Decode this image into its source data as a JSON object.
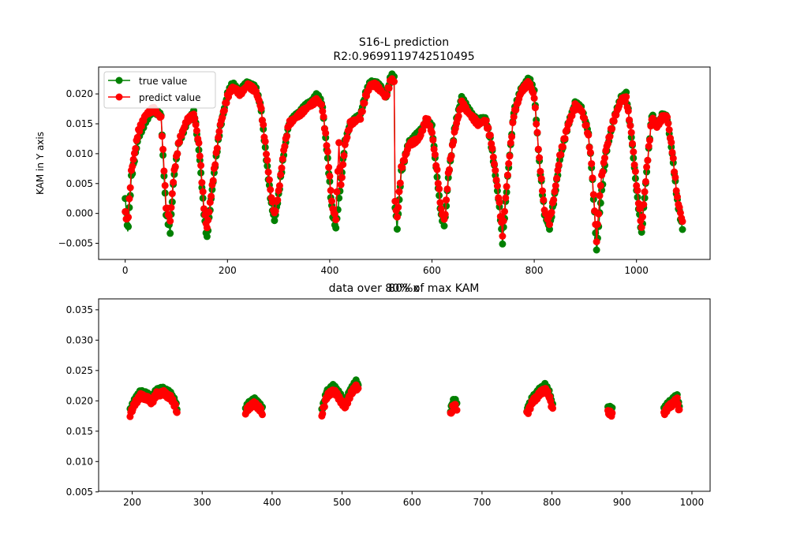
{
  "colors": {
    "true_series": "#008000",
    "predict_series": "#ff0000",
    "axes": "#000000",
    "background": "#ffffff"
  },
  "chart_data": [
    {
      "type": "line",
      "title": "S16-L prediction",
      "subtitle": "R2:0.9699119742510495",
      "xlabel": "",
      "ylabel": "KAM in Y axis",
      "xlim": [
        -52,
        1144
      ],
      "ylim": [
        -0.0077,
        0.0245
      ],
      "xticks": [
        0,
        200,
        400,
        600,
        800,
        1000
      ],
      "yticks": [
        -0.005,
        0.0,
        0.005,
        0.01,
        0.015,
        0.02
      ],
      "ytick_labels": [
        "−0.005",
        "0.000",
        "0.005",
        "0.010",
        "0.015",
        "0.020"
      ],
      "legend": {
        "position": "top-left",
        "entries": [
          "true value",
          "predict value"
        ]
      },
      "series": [
        {
          "name": "true value",
          "marker": "circle",
          "color": "#008000",
          "keypoints": [
            [
              0,
              0.0025
            ],
            [
              5,
              -0.0033
            ],
            [
              12,
              0.006
            ],
            [
              25,
              0.0125
            ],
            [
              40,
              0.0155
            ],
            [
              55,
              0.0172
            ],
            [
              70,
              0.0165
            ],
            [
              75,
              0.008
            ],
            [
              80,
              0.0
            ],
            [
              88,
              -0.003
            ],
            [
              95,
              0.006
            ],
            [
              105,
              0.012
            ],
            [
              120,
              0.015
            ],
            [
              135,
              0.017
            ],
            [
              145,
              0.01
            ],
            [
              155,
              -0.001
            ],
            [
              160,
              -0.0042
            ],
            [
              170,
              0.004
            ],
            [
              185,
              0.014
            ],
            [
              200,
              0.02
            ],
            [
              210,
              0.0217
            ],
            [
              225,
              0.0205
            ],
            [
              240,
              0.022
            ],
            [
              255,
              0.021
            ],
            [
              265,
              0.018
            ],
            [
              275,
              0.01
            ],
            [
              285,
              0.002
            ],
            [
              292,
              -0.0012
            ],
            [
              300,
              0.003
            ],
            [
              310,
              0.01
            ],
            [
              320,
              0.015
            ],
            [
              340,
              0.017
            ],
            [
              360,
              0.0185
            ],
            [
              375,
              0.0198
            ],
            [
              385,
              0.0185
            ],
            [
              395,
              0.01
            ],
            [
              405,
              0.0
            ],
            [
              412,
              -0.0025
            ],
            [
              420,
              0.004
            ],
            [
              430,
              0.012
            ],
            [
              440,
              0.015
            ],
            [
              460,
              0.0165
            ],
            [
              470,
              0.02
            ],
            [
              480,
              0.022
            ],
            [
              490,
              0.022
            ],
            [
              500,
              0.021
            ],
            [
              510,
              0.0195
            ],
            [
              520,
              0.0232
            ],
            [
              526,
              0.0226
            ],
            [
              528,
              0.0012
            ],
            [
              532,
              -0.0025
            ],
            [
              540,
              0.007
            ],
            [
              555,
              0.012
            ],
            [
              575,
              0.0135
            ],
            [
              590,
              0.0155
            ],
            [
              600,
              0.0145
            ],
            [
              610,
              0.006
            ],
            [
              618,
              -0.0005
            ],
            [
              625,
              -0.002
            ],
            [
              632,
              0.006
            ],
            [
              645,
              0.0145
            ],
            [
              658,
              0.0195
            ],
            [
              670,
              0.0175
            ],
            [
              690,
              0.0155
            ],
            [
              705,
              0.016
            ],
            [
              715,
              0.012
            ],
            [
              725,
              0.006
            ],
            [
              732,
              0.001
            ],
            [
              738,
              -0.0048
            ],
            [
              748,
              0.006
            ],
            [
              760,
              0.017
            ],
            [
              775,
              0.021
            ],
            [
              790,
              0.0225
            ],
            [
              800,
              0.0205
            ],
            [
              810,
              0.0085
            ],
            [
              820,
              0.0
            ],
            [
              830,
              -0.0025
            ],
            [
              840,
              0.003
            ],
            [
              850,
              0.009
            ],
            [
              865,
              0.0145
            ],
            [
              880,
              0.0185
            ],
            [
              893,
              0.0175
            ],
            [
              905,
              0.014
            ],
            [
              912,
              0.008
            ],
            [
              918,
              0.0
            ],
            [
              922,
              -0.0062
            ],
            [
              930,
              0.002
            ],
            [
              940,
              0.01
            ],
            [
              955,
              0.0155
            ],
            [
              970,
              0.0195
            ],
            [
              980,
              0.02
            ],
            [
              990,
              0.013
            ],
            [
              1000,
              0.004
            ],
            [
              1010,
              -0.0035
            ],
            [
              1020,
              0.007
            ],
            [
              1030,
              0.0165
            ],
            [
              1040,
              0.0145
            ],
            [
              1050,
              0.0165
            ],
            [
              1060,
              0.016
            ],
            [
              1070,
              0.01
            ],
            [
              1080,
              0.002
            ],
            [
              1090,
              -0.0025
            ]
          ]
        },
        {
          "name": "predict value",
          "marker": "circle",
          "color": "#ff0000",
          "keypoints": [
            [
              0,
              0.0
            ],
            [
              5,
              -0.0015
            ],
            [
              12,
              0.007
            ],
            [
              25,
              0.0135
            ],
            [
              40,
              0.0165
            ],
            [
              55,
              0.0175
            ],
            [
              70,
              0.016
            ],
            [
              75,
              0.009
            ],
            [
              80,
              0.0012
            ],
            [
              88,
              -0.0012
            ],
            [
              95,
              0.0065
            ],
            [
              105,
              0.012
            ],
            [
              120,
              0.0155
            ],
            [
              135,
              0.0165
            ],
            [
              145,
              0.011
            ],
            [
              155,
              0.0
            ],
            [
              160,
              -0.0025
            ],
            [
              170,
              0.0045
            ],
            [
              185,
              0.0145
            ],
            [
              200,
              0.0195
            ],
            [
              210,
              0.0212
            ],
            [
              225,
              0.02
            ],
            [
              240,
              0.0215
            ],
            [
              255,
              0.0205
            ],
            [
              265,
              0.018
            ],
            [
              275,
              0.011
            ],
            [
              285,
              0.0032
            ],
            [
              292,
              -0.0002
            ],
            [
              300,
              0.0035
            ],
            [
              310,
              0.0105
            ],
            [
              320,
              0.015
            ],
            [
              340,
              0.0165
            ],
            [
              360,
              0.018
            ],
            [
              375,
              0.019
            ],
            [
              385,
              0.018
            ],
            [
              395,
              0.011
            ],
            [
              405,
              0.001
            ],
            [
              412,
              -0.0008
            ],
            [
              418,
              0.0115
            ],
            [
              422,
              0.0045
            ],
            [
              430,
              0.0115
            ],
            [
              440,
              0.015
            ],
            [
              460,
              0.016
            ],
            [
              470,
              0.0195
            ],
            [
              480,
              0.0215
            ],
            [
              490,
              0.0215
            ],
            [
              500,
              0.0205
            ],
            [
              510,
              0.0195
            ],
            [
              520,
              0.0225
            ],
            [
              526,
              0.022
            ],
            [
              528,
              0.002
            ],
            [
              532,
              -0.0008
            ],
            [
              540,
              0.0075
            ],
            [
              555,
              0.0115
            ],
            [
              575,
              0.0125
            ],
            [
              590,
              0.016
            ],
            [
              600,
              0.0135
            ],
            [
              610,
              0.007
            ],
            [
              618,
              0.0005
            ],
            [
              625,
              -0.0012
            ],
            [
              632,
              0.0065
            ],
            [
              645,
              0.014
            ],
            [
              658,
              0.0185
            ],
            [
              670,
              0.017
            ],
            [
              690,
              0.015
            ],
            [
              705,
              0.0155
            ],
            [
              715,
              0.0125
            ],
            [
              725,
              0.0065
            ],
            [
              732,
              0.0015
            ],
            [
              738,
              -0.0035
            ],
            [
              748,
              0.0065
            ],
            [
              760,
              0.0165
            ],
            [
              775,
              0.0205
            ],
            [
              790,
              0.022
            ],
            [
              800,
              0.0195
            ],
            [
              810,
              0.009
            ],
            [
              820,
              0.0005
            ],
            [
              830,
              -0.0015
            ],
            [
              840,
              0.0035
            ],
            [
              850,
              0.0095
            ],
            [
              865,
              0.0145
            ],
            [
              880,
              0.018
            ],
            [
              893,
              0.0172
            ],
            [
              905,
              0.0135
            ],
            [
              912,
              0.0085
            ],
            [
              918,
              0.0005
            ],
            [
              922,
              -0.0045
            ],
            [
              930,
              0.005
            ],
            [
              940,
              0.0105
            ],
            [
              955,
              0.0155
            ],
            [
              970,
              0.019
            ],
            [
              980,
              0.0192
            ],
            [
              990,
              0.0135
            ],
            [
              1000,
              0.005
            ],
            [
              1010,
              -0.0025
            ],
            [
              1020,
              0.0075
            ],
            [
              1030,
              0.016
            ],
            [
              1040,
              0.0145
            ],
            [
              1050,
              0.016
            ],
            [
              1060,
              0.0162
            ],
            [
              1070,
              0.0105
            ],
            [
              1080,
              0.0025
            ],
            [
              1090,
              -0.0015
            ]
          ]
        }
      ]
    },
    {
      "type": "scatter",
      "title": "data over 80% of max KAM",
      "xlabel": "",
      "ylabel": "",
      "xlim": [
        152,
        1026
      ],
      "ylim": [
        0.0051,
        0.0368
      ],
      "xticks": [
        200,
        300,
        400,
        500,
        600,
        700,
        800,
        900,
        1000
      ],
      "yticks": [
        0.005,
        0.01,
        0.015,
        0.02,
        0.025,
        0.03,
        0.035
      ],
      "ytick_labels": [
        "0.005",
        "0.010",
        "0.015",
        "0.020",
        "0.025",
        "0.030",
        "0.035"
      ],
      "segments": [
        {
          "x_range": [
            197,
            264
          ],
          "true_shape": [
            [
              197,
              0.0185
            ],
            [
              205,
              0.0205
            ],
            [
              212,
              0.0215
            ],
            [
              220,
              0.0212
            ],
            [
              228,
              0.0205
            ],
            [
              235,
              0.0218
            ],
            [
              245,
              0.022
            ],
            [
              255,
              0.0212
            ],
            [
              262,
              0.0198
            ],
            [
              264,
              0.0188
            ]
          ],
          "predict_offset": -0.0007
        },
        {
          "x_range": [
            362,
            386
          ],
          "true_shape": [
            [
              362,
              0.0188
            ],
            [
              368,
              0.0198
            ],
            [
              375,
              0.0202
            ],
            [
              381,
              0.0196
            ],
            [
              386,
              0.0187
            ]
          ],
          "predict_offset": -0.0007
        },
        {
          "x_range": [
            471,
            523
          ],
          "true_shape": [
            [
              471,
              0.0185
            ],
            [
              478,
              0.0215
            ],
            [
              488,
              0.0225
            ],
            [
              496,
              0.0212
            ],
            [
              504,
              0.0198
            ],
            [
              512,
              0.0218
            ],
            [
              520,
              0.0232
            ],
            [
              523,
              0.0225
            ]
          ],
          "predict_offset": -0.0008
        },
        {
          "x_range": [
            655,
            664
          ],
          "true_shape": [
            [
              655,
              0.0185
            ],
            [
              658,
              0.0198
            ],
            [
              661,
              0.0202
            ],
            [
              664,
              0.0195
            ]
          ],
          "predict_offset": -0.0009
        },
        {
          "x_range": [
            764,
            801
          ],
          "true_shape": [
            [
              764,
              0.0185
            ],
            [
              772,
              0.0205
            ],
            [
              782,
              0.0218
            ],
            [
              790,
              0.0226
            ],
            [
              796,
              0.0215
            ],
            [
              801,
              0.0192
            ]
          ],
          "predict_offset": -0.0007
        },
        {
          "x_range": [
            880,
            886
          ],
          "true_shape": [
            [
              880,
              0.0188
            ],
            [
              883,
              0.0188
            ],
            [
              886,
              0.0186
            ]
          ],
          "predict_offset": -0.0008
        },
        {
          "x_range": [
            960,
            982
          ],
          "true_shape": [
            [
              960,
              0.0187
            ],
            [
              968,
              0.0198
            ],
            [
              975,
              0.0205
            ],
            [
              979,
              0.0208
            ],
            [
              982,
              0.019
            ]
          ],
          "predict_offset": -0.0007
        }
      ]
    }
  ],
  "overlap_label": "80%x"
}
